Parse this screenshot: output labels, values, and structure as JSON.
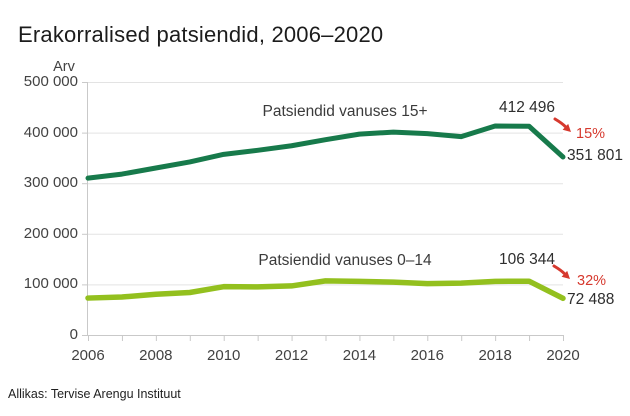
{
  "title": "Erakorralised patsiendid, 2006–2020",
  "y_axis": {
    "unit": "Arv"
  },
  "colors": {
    "series_15plus": "#177a4b",
    "series_0_14": "#93c01e",
    "decline_red": "#d6392e",
    "grid": "#e3e3e3",
    "axis": "#c9c9c9",
    "title_text": "#1c1c1c",
    "tick_text": "#424242"
  },
  "annotations": {
    "label_15plus": "Patsiendid vanuses 15+",
    "peak_15plus": "412 496",
    "pct_15plus": "15%",
    "end_15plus": "351 801",
    "label_0_14": "Patsiendid vanuses 0–14",
    "peak_0_14": "106 344",
    "pct_0_14": "32%",
    "end_0_14": "72 488"
  },
  "footer": {
    "source": "Allikas: Tervise Arengu Instituut"
  },
  "chart_data": {
    "type": "line",
    "title": "Erakorralised patsiendid, 2006–2020",
    "ylabel": "Arv",
    "xlabel": "",
    "grid": "horizontal",
    "legend_position": "inline-labels",
    "ylim": [
      0,
      500000
    ],
    "x": [
      2006,
      2007,
      2008,
      2009,
      2010,
      2011,
      2012,
      2013,
      2014,
      2015,
      2016,
      2017,
      2018,
      2019,
      2020
    ],
    "x_tick_labels": [
      "2006",
      "",
      "2008",
      "",
      "2010",
      "",
      "2012",
      "",
      "2014",
      "",
      "2016",
      "",
      "2018",
      "",
      "2020"
    ],
    "y_ticks": [
      {
        "value": 0,
        "label": "0"
      },
      {
        "value": 100000,
        "label": "100 000"
      },
      {
        "value": 200000,
        "label": "200 000"
      },
      {
        "value": 300000,
        "label": "300 000"
      },
      {
        "value": 400000,
        "label": "400 000"
      },
      {
        "value": 500000,
        "label": "500 000"
      }
    ],
    "series": [
      {
        "id": "15plus",
        "name": "Patsiendid vanuses 15+",
        "color": "#177a4b",
        "stroke_width": 5,
        "values": [
          310000,
          318000,
          330000,
          342000,
          357000,
          365000,
          374000,
          386000,
          397000,
          401000,
          398000,
          392000,
          413000,
          412496,
          351801
        ]
      },
      {
        "id": "0-14",
        "name": "Patsiendid vanuses 0–14",
        "color": "#93c01e",
        "stroke_width": 5.5,
        "values": [
          73000,
          75000,
          80500,
          84000,
          95500,
          95000,
          97000,
          107000,
          106000,
          104500,
          101500,
          102500,
          106000,
          106344,
          72488
        ]
      }
    ]
  }
}
